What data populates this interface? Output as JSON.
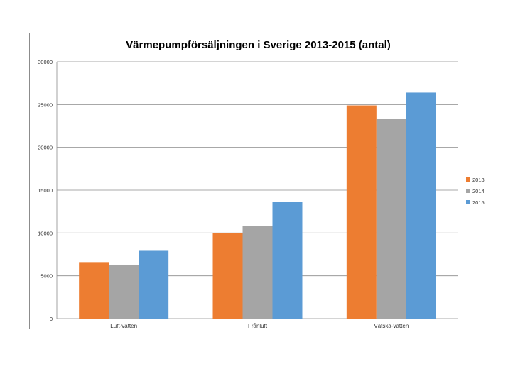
{
  "chart_data": {
    "type": "bar",
    "title": "Värmepumpförsäljningen i Sverige 2013-2015 (antal)",
    "categories": [
      "Luft-vatten",
      "Frånluft",
      "Vätska-vatten"
    ],
    "series": [
      {
        "name": "2013",
        "color": "#ED7D31",
        "values": [
          6600,
          10000,
          24900
        ]
      },
      {
        "name": "2014",
        "color": "#A5A5A5",
        "values": [
          6300,
          10800,
          23300
        ]
      },
      {
        "name": "2015",
        "color": "#5B9BD5",
        "values": [
          8000,
          13600,
          26400
        ]
      }
    ],
    "yticks": [
      "0",
      "5000",
      "10000",
      "15000",
      "20000",
      "25000",
      "30000"
    ],
    "ylim": [
      0,
      30000
    ],
    "grid": true,
    "legend_position": "right"
  }
}
